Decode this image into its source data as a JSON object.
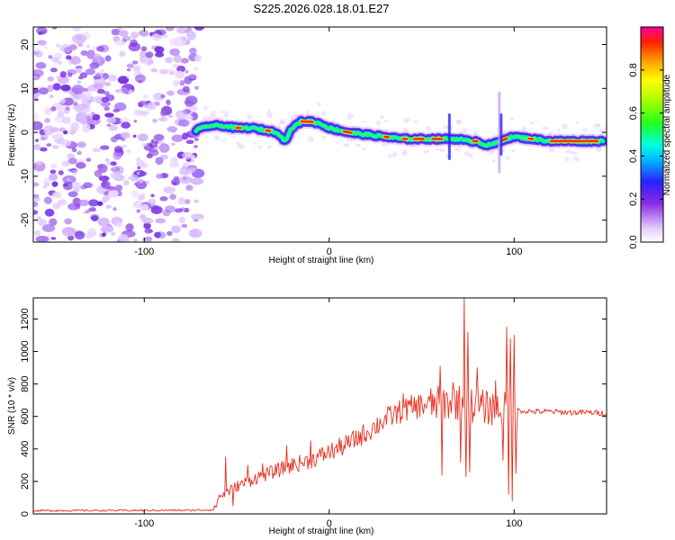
{
  "title": "S225.2026.028.18.01.E27",
  "chart_data": [
    {
      "type": "heatmap",
      "name": "spectrogram",
      "xlabel": "Height of straight line (km)",
      "ylabel": "Frequency (Hz)",
      "xlim": [
        -160,
        150
      ],
      "ylim": [
        -25,
        24
      ],
      "xticks": [
        -100,
        0,
        100
      ],
      "yticks": [
        -20,
        -10,
        0,
        10,
        20
      ],
      "noise_region_x": [
        -160,
        -72
      ],
      "ridge": {
        "x": [
          -72,
          -65,
          -58,
          -50,
          -42,
          -35,
          -28,
          -24,
          -20,
          -15,
          -10,
          -5,
          0,
          10,
          20,
          30,
          40,
          50,
          60,
          70,
          75,
          80,
          85,
          90,
          95,
          100,
          110,
          120,
          130,
          140,
          148
        ],
        "y": [
          0.5,
          1.5,
          1.5,
          1.0,
          1.0,
          0.5,
          0.0,
          -2.0,
          1.0,
          2.5,
          2.5,
          2.0,
          1.0,
          0.0,
          -0.5,
          -1.0,
          -1.5,
          -1.5,
          -1.5,
          -1.5,
          -2.0,
          -2.0,
          -3.0,
          -2.5,
          -1.5,
          -1.0,
          -1.5,
          -2.0,
          -2.0,
          -2.0,
          -2.0
        ]
      },
      "colorbar": {
        "label": "Normalized spectral amplitude",
        "range": [
          0.0,
          1.0
        ],
        "ticks": [
          "0.0",
          "0.2",
          "0.4",
          "0.6",
          "0.8"
        ],
        "tick_values": [
          0.0,
          0.2,
          0.4,
          0.6,
          0.8
        ]
      }
    },
    {
      "type": "line",
      "name": "snr",
      "xlabel": "Height of straight line (km)",
      "ylabel": "SNR (10 * v/v)",
      "xlim": [
        -160,
        150
      ],
      "ylim": [
        0,
        1330
      ],
      "xticks": [
        -100,
        0,
        100
      ],
      "yticks": [
        0,
        200,
        400,
        600,
        800,
        1000,
        1200
      ],
      "color": "#e8301f",
      "trend": {
        "x": [
          -160,
          -80,
          -62,
          -60,
          -50,
          -40,
          -30,
          -20,
          -10,
          0,
          10,
          20,
          30,
          40,
          50,
          60,
          70,
          80,
          90,
          100,
          110,
          120,
          130,
          140,
          150
        ],
        "y": [
          20,
          22,
          25,
          100,
          170,
          220,
          260,
          300,
          330,
          380,
          430,
          500,
          580,
          640,
          670,
          680,
          690,
          660,
          650,
          640,
          630,
          630,
          625,
          625,
          620
        ]
      },
      "spikes": [
        {
          "x": -56,
          "y": 350
        },
        {
          "x": -52,
          "y": 50
        },
        {
          "x": -44,
          "y": 300
        },
        {
          "x": -36,
          "y": 310
        },
        {
          "x": -23,
          "y": 420
        },
        {
          "x": -10,
          "y": 450
        },
        {
          "x": 40,
          "y": 740
        },
        {
          "x": 60,
          "y": 910
        },
        {
          "x": 61,
          "y": 240
        },
        {
          "x": 67,
          "y": 810
        },
        {
          "x": 71,
          "y": 320
        },
        {
          "x": 73,
          "y": 1330
        },
        {
          "x": 74,
          "y": 230
        },
        {
          "x": 75,
          "y": 1120
        },
        {
          "x": 76,
          "y": 260
        },
        {
          "x": 80,
          "y": 900
        },
        {
          "x": 90,
          "y": 820
        },
        {
          "x": 94,
          "y": 330
        },
        {
          "x": 96,
          "y": 1150
        },
        {
          "x": 97,
          "y": 120
        },
        {
          "x": 98,
          "y": 1080
        },
        {
          "x": 99,
          "y": 80
        },
        {
          "x": 100,
          "y": 1100
        },
        {
          "x": 101,
          "y": 250
        }
      ]
    }
  ]
}
